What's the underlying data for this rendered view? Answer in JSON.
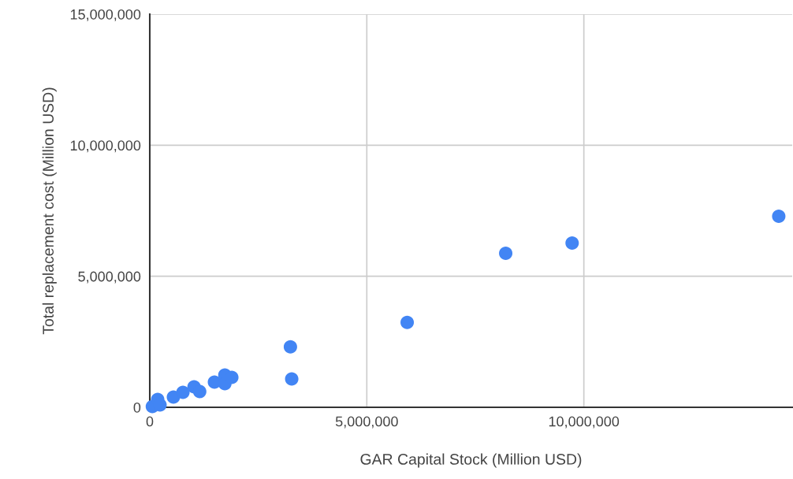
{
  "chart_data": {
    "type": "scatter",
    "xlabel": "GAR Capital Stock (Million USD)",
    "ylabel": "Total replacement cost (Million USD)",
    "x": [
      60000,
      182000,
      236000,
      545000,
      764000,
      1020000,
      1150000,
      1490000,
      1730000,
      1730000,
      1890000,
      3240000,
      3270000,
      5930000,
      8200000,
      9730000,
      14490000
    ],
    "series": [
      {
        "color": "#4285f4",
        "values": [
          30000,
          300000,
          90000,
          390000,
          570000,
          780000,
          600000,
          960000,
          1230000,
          900000,
          1140000,
          2310000,
          1080000,
          3240000,
          5880000,
          6270000,
          7290000
        ]
      }
    ],
    "xlim": [
      0,
      14800000
    ],
    "ylim": [
      0,
      15000000
    ],
    "xticks": [
      {
        "value": 0,
        "label": "0"
      },
      {
        "value": 5000000,
        "label": "5,000,000"
      },
      {
        "value": 10000000,
        "label": "10,000,000"
      }
    ],
    "yticks": [
      {
        "value": 0,
        "label": "0"
      },
      {
        "value": 5000000,
        "label": "5,000,000"
      },
      {
        "value": 10000000,
        "label": "10,000,000"
      },
      {
        "value": 15000000,
        "label": "15,000,000"
      }
    ],
    "grid": true,
    "marker": "circle",
    "legend": false
  }
}
